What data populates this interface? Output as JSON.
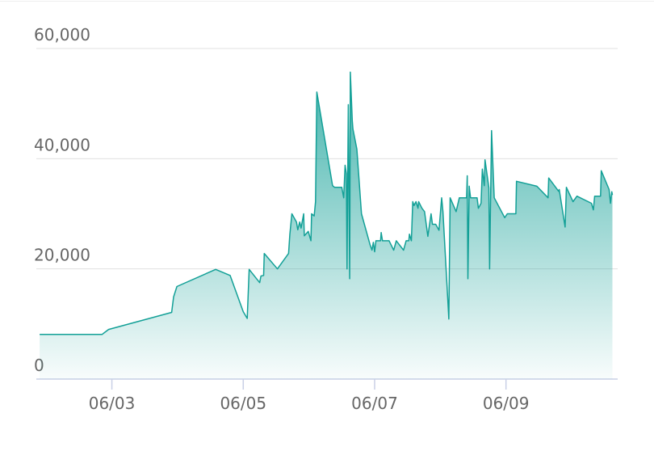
{
  "chart_data": {
    "type": "area",
    "color": "#13a097",
    "grid": true,
    "xlim": [
      1.85,
      10.7
    ],
    "xticks": [
      {
        "value": 3,
        "label": "06/03"
      },
      {
        "value": 5,
        "label": "06/05"
      },
      {
        "value": 7,
        "label": "06/07"
      },
      {
        "value": 9,
        "label": "06/09"
      }
    ],
    "ylim": [
      0,
      60000
    ],
    "yticks": [
      0,
      {
        "value": 20000,
        "label": "20,000"
      },
      {
        "value": 40000,
        "label": "40,000"
      },
      {
        "value": 60000,
        "label": "60,000"
      }
    ],
    "x": [
      1.9,
      2.85,
      2.95,
      3.91,
      3.94,
      3.99,
      4.58,
      4.8,
      5.0,
      5.06,
      5.09,
      5.25,
      5.27,
      5.31,
      5.32,
      5.52,
      5.69,
      5.71,
      5.74,
      5.81,
      5.83,
      5.86,
      5.88,
      5.92,
      5.93,
      5.99,
      6.03,
      6.04,
      6.08,
      6.1,
      6.12,
      6.36,
      6.39,
      6.5,
      6.53,
      6.55,
      6.57,
      6.58,
      6.6,
      6.62,
      6.63,
      6.66,
      6.67,
      6.73,
      6.8,
      6.93,
      6.96,
      6.98,
      7.0,
      7.02,
      7.09,
      7.1,
      7.12,
      7.22,
      7.29,
      7.33,
      7.44,
      7.48,
      7.52,
      7.53,
      7.56,
      7.58,
      7.6,
      7.63,
      7.66,
      7.67,
      7.72,
      7.76,
      7.81,
      7.86,
      7.88,
      7.93,
      7.98,
      8.02,
      8.04,
      8.13,
      8.15,
      8.24,
      8.29,
      8.36,
      8.4,
      8.41,
      8.42,
      8.44,
      8.46,
      8.56,
      8.58,
      8.62,
      8.64,
      8.67,
      8.68,
      8.74,
      8.75,
      8.78,
      8.82,
      8.98,
      9.02,
      9.15,
      9.16,
      9.47,
      9.64,
      9.65,
      9.8,
      9.81,
      9.9,
      9.92,
      10.02,
      10.08,
      10.3,
      10.33,
      10.35,
      10.44,
      10.45,
      10.57,
      10.59,
      10.61,
      10.62
    ],
    "values": [
      8100,
      8100,
      9000,
      12100,
      14900,
      16800,
      19900,
      18800,
      12200,
      11000,
      19900,
      17500,
      18700,
      18800,
      22800,
      20000,
      22800,
      26300,
      30000,
      28500,
      27100,
      28500,
      27400,
      30000,
      26000,
      26800,
      25100,
      30000,
      29600,
      32200,
      52100,
      35100,
      34800,
      34800,
      32900,
      38800,
      37300,
      20000,
      49800,
      18200,
      55700,
      46900,
      45400,
      41700,
      30000,
      24400,
      23400,
      24800,
      23100,
      25100,
      25100,
      26600,
      25100,
      25100,
      23400,
      25100,
      23400,
      25100,
      25100,
      26300,
      25100,
      32200,
      31500,
      32200,
      31000,
      32200,
      31000,
      30400,
      25900,
      30000,
      28100,
      28100,
      27000,
      32900,
      30400,
      10900,
      32900,
      30400,
      32900,
      32900,
      32900,
      36900,
      18200,
      35000,
      32900,
      32900,
      31000,
      31900,
      38100,
      35100,
      39800,
      34700,
      20000,
      45100,
      32900,
      29300,
      30000,
      30000,
      35900,
      35000,
      32900,
      36500,
      34100,
      34400,
      27600,
      34800,
      32200,
      33200,
      31900,
      30700,
      33200,
      33200,
      37800,
      34400,
      31900,
      34000,
      33400
    ]
  }
}
